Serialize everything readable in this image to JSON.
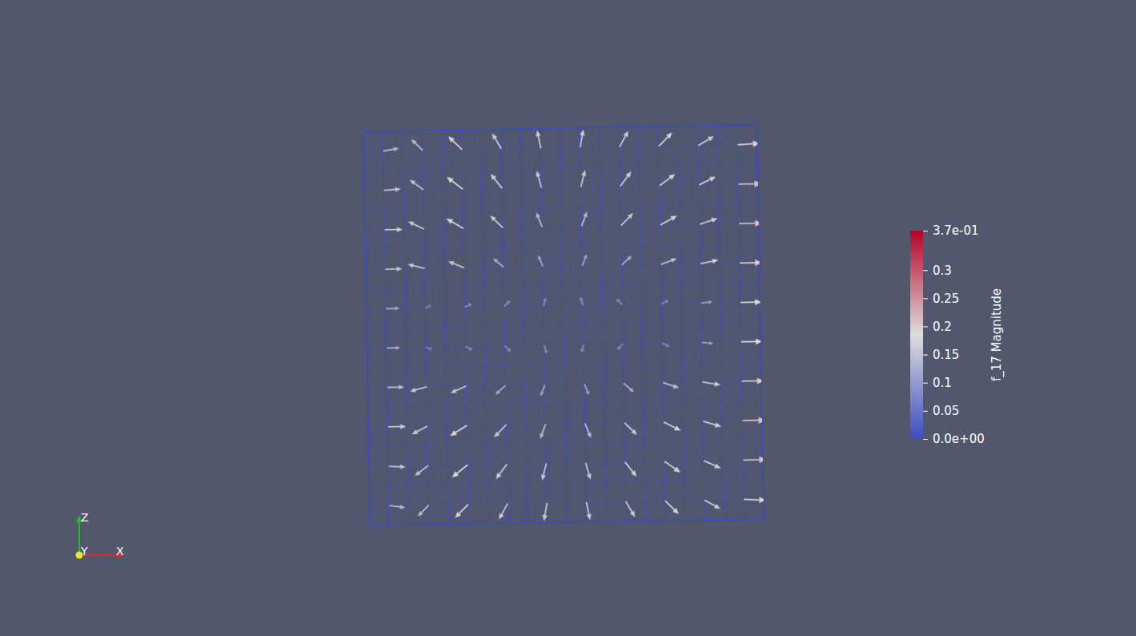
{
  "chart_data": {
    "type": "vector_field",
    "x": [
      -0.9,
      -0.7,
      -0.5,
      -0.3,
      -0.1,
      0.1,
      0.3,
      0.5,
      0.7,
      0.9
    ],
    "y": [
      0.9,
      0.7,
      0.5,
      0.3,
      0.1,
      -0.1,
      -0.3,
      -0.5,
      -0.7,
      -0.9
    ],
    "u": [
      [
        0.14,
        -0.1,
        -0.12,
        -0.08,
        -0.03,
        0.03,
        0.08,
        0.12,
        0.14,
        0.2
      ],
      [
        0.15,
        -0.12,
        -0.14,
        -0.1,
        -0.04,
        0.04,
        0.1,
        0.14,
        0.15,
        0.21
      ],
      [
        0.16,
        -0.14,
        -0.15,
        -0.11,
        -0.05,
        0.05,
        0.11,
        0.15,
        0.16,
        0.21
      ],
      [
        0.15,
        -0.15,
        -0.14,
        -0.09,
        -0.04,
        0.04,
        0.09,
        0.14,
        0.16,
        0.2
      ],
      [
        0.12,
        0.05,
        0.06,
        0.05,
        0.02,
        -0.02,
        -0.05,
        0.06,
        0.1,
        0.19
      ],
      [
        0.12,
        0.05,
        0.06,
        0.05,
        0.02,
        -0.02,
        -0.05,
        0.06,
        0.1,
        0.19
      ],
      [
        0.15,
        -0.15,
        -0.14,
        -0.09,
        -0.04,
        0.04,
        0.09,
        0.14,
        0.16,
        0.2
      ],
      [
        0.16,
        -0.14,
        -0.15,
        -0.11,
        -0.05,
        0.05,
        0.11,
        0.15,
        0.16,
        0.21
      ],
      [
        0.15,
        -0.12,
        -0.14,
        -0.1,
        -0.04,
        0.04,
        0.1,
        0.14,
        0.15,
        0.21
      ],
      [
        0.14,
        -0.1,
        -0.12,
        -0.08,
        -0.03,
        0.03,
        0.08,
        0.12,
        0.14,
        0.2
      ]
    ],
    "v": [
      [
        0.02,
        0.1,
        0.12,
        0.14,
        0.16,
        0.16,
        0.14,
        0.12,
        0.08,
        0.01
      ],
      [
        0.01,
        0.09,
        0.11,
        0.13,
        0.15,
        0.15,
        0.13,
        0.1,
        0.07,
        0.0
      ],
      [
        0.0,
        0.07,
        0.09,
        0.11,
        0.13,
        0.13,
        0.11,
        0.08,
        0.05,
        0.0
      ],
      [
        0.0,
        0.04,
        0.06,
        0.08,
        0.1,
        0.1,
        0.08,
        0.05,
        0.03,
        0.0
      ],
      [
        0.0,
        0.02,
        0.03,
        0.05,
        0.07,
        0.07,
        0.05,
        0.03,
        0.01,
        0.0
      ],
      [
        0.0,
        -0.02,
        -0.03,
        -0.05,
        -0.07,
        -0.07,
        -0.05,
        -0.03,
        -0.01,
        0.0
      ],
      [
        0.0,
        -0.04,
        -0.06,
        -0.08,
        -0.1,
        -0.1,
        -0.08,
        -0.05,
        -0.03,
        0.0
      ],
      [
        0.0,
        -0.07,
        -0.09,
        -0.11,
        -0.13,
        -0.13,
        -0.11,
        -0.08,
        -0.05,
        0.0
      ],
      [
        -0.01,
        -0.09,
        -0.11,
        -0.13,
        -0.15,
        -0.15,
        -0.13,
        -0.1,
        -0.07,
        0.0
      ],
      [
        -0.02,
        -0.1,
        -0.12,
        -0.14,
        -0.16,
        -0.16,
        -0.14,
        -0.12,
        -0.08,
        -0.01
      ]
    ],
    "xlim": [
      -1,
      1
    ],
    "ylim": [
      -1,
      1
    ],
    "tick_labels": false,
    "axis_labels": [
      "X",
      "Y",
      "Z"
    ],
    "colorbar": {
      "title": "f_17 Magnitude",
      "range": [
        0,
        0.37
      ],
      "ticks": [
        {
          "value": 0,
          "label": "0.0e+00"
        },
        0.05,
        0.1,
        0.15,
        0.2,
        0.25,
        0.3,
        {
          "value": 0.37,
          "label": "3.7e-01"
        }
      ],
      "colors": [
        "#3b4cc0",
        "#dddddd",
        "#b40426"
      ]
    }
  }
}
